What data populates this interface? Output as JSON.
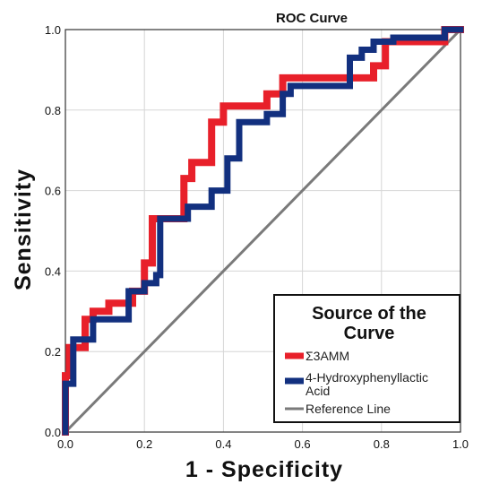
{
  "chart_data": {
    "type": "line",
    "title": "ROC Curve",
    "xlabel": "1 - Specificity",
    "ylabel": "Sensitivity",
    "xlim": [
      0,
      1
    ],
    "ylim": [
      0,
      1
    ],
    "xticks": [
      "0.0",
      "0.2",
      "0.4",
      "0.6",
      "0.8",
      "1.0"
    ],
    "yticks": [
      "0.0",
      "0.2",
      "0.4",
      "0.6",
      "0.8",
      "1.0"
    ],
    "grid": true,
    "legend": {
      "title": "Source of the Curve",
      "placement": "bottom-right"
    },
    "series": [
      {
        "name": "Σ3AMM",
        "color": "#e8202a",
        "x": [
          0,
          0,
          0.01,
          0.01,
          0.05,
          0.05,
          0.07,
          0.07,
          0.11,
          0.11,
          0.17,
          0.17,
          0.2,
          0.2,
          0.22,
          0.22,
          0.3,
          0.3,
          0.32,
          0.32,
          0.37,
          0.37,
          0.4,
          0.4,
          0.51,
          0.51,
          0.55,
          0.55,
          0.71,
          0.71,
          0.78,
          0.78,
          0.81,
          0.81,
          0.96,
          0.96,
          1
        ],
        "y": [
          0,
          0.14,
          0.14,
          0.21,
          0.21,
          0.28,
          0.28,
          0.3,
          0.3,
          0.32,
          0.32,
          0.35,
          0.35,
          0.42,
          0.42,
          0.53,
          0.53,
          0.63,
          0.63,
          0.67,
          0.67,
          0.77,
          0.77,
          0.81,
          0.81,
          0.84,
          0.84,
          0.88,
          0.88,
          0.88,
          0.88,
          0.91,
          0.91,
          0.97,
          0.97,
          1.0,
          1.0
        ]
      },
      {
        "name": "4-Hydroxyphenyllactic Acid",
        "color": "#12307f",
        "x": [
          0,
          0,
          0.02,
          0.02,
          0.07,
          0.07,
          0.16,
          0.16,
          0.2,
          0.2,
          0.23,
          0.23,
          0.24,
          0.24,
          0.31,
          0.31,
          0.37,
          0.37,
          0.41,
          0.41,
          0.44,
          0.44,
          0.51,
          0.51,
          0.55,
          0.55,
          0.57,
          0.57,
          0.72,
          0.72,
          0.75,
          0.75,
          0.78,
          0.78,
          0.83,
          0.83,
          0.96,
          0.96,
          1
        ],
        "y": [
          0,
          0.12,
          0.12,
          0.23,
          0.23,
          0.28,
          0.28,
          0.35,
          0.35,
          0.37,
          0.37,
          0.39,
          0.39,
          0.53,
          0.53,
          0.56,
          0.56,
          0.6,
          0.6,
          0.68,
          0.68,
          0.77,
          0.77,
          0.79,
          0.79,
          0.84,
          0.84,
          0.86,
          0.86,
          0.93,
          0.93,
          0.95,
          0.95,
          0.97,
          0.97,
          0.98,
          0.98,
          1.0,
          1.0
        ]
      },
      {
        "name": "Reference Line",
        "color": "#7a7a7a",
        "x": [
          0,
          1
        ],
        "y": [
          0,
          1
        ]
      }
    ]
  }
}
